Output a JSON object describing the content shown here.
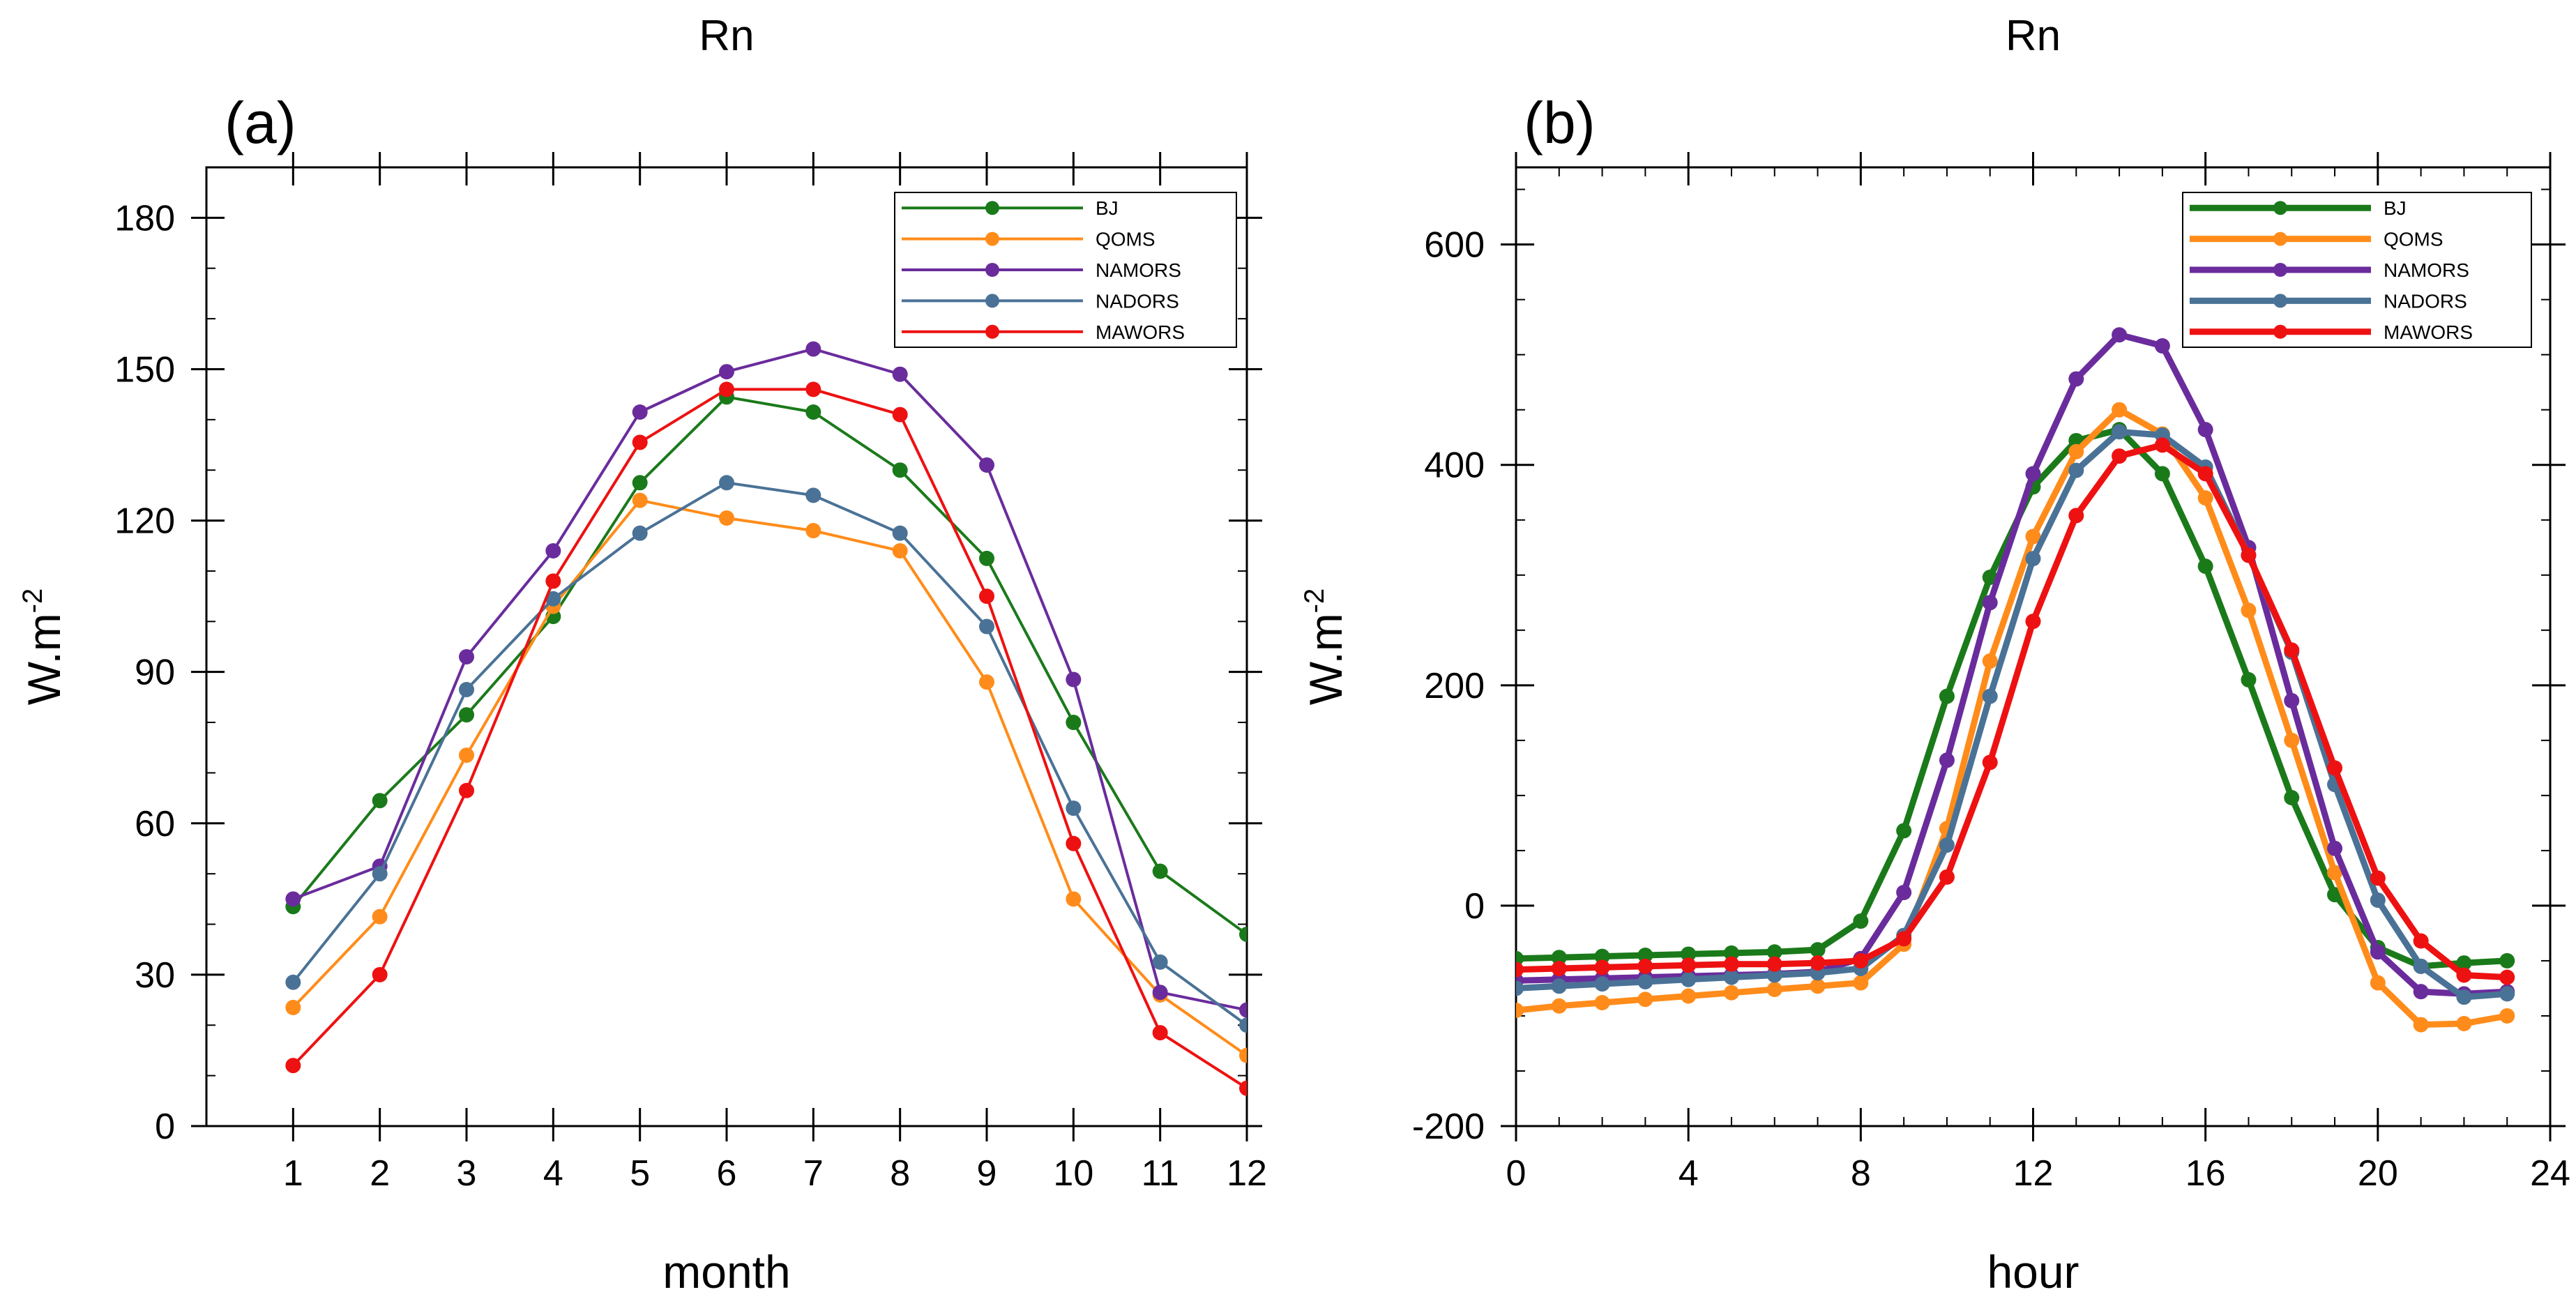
{
  "chart_data": [
    {
      "type": "line",
      "panel_label": "(a)",
      "title": "Rn",
      "xlabel": "month",
      "ylabel": "W.m",
      "ylabel_sup": "-2",
      "xlim": [
        0,
        12
      ],
      "ylim": [
        0,
        190
      ],
      "xticks": [
        1,
        2,
        3,
        4,
        5,
        6,
        7,
        8,
        9,
        10,
        11,
        12
      ],
      "yticks": [
        0,
        30,
        60,
        90,
        120,
        150,
        180
      ],
      "legend_position": "top-right",
      "x": [
        1,
        2,
        3,
        4,
        5,
        6,
        7,
        8,
        9,
        10,
        11,
        12
      ],
      "series": [
        {
          "name": "BJ",
          "color": "#1a7a1a",
          "values": [
            43.5,
            64.5,
            81.5,
            101,
            127.5,
            144.5,
            141.5,
            130,
            112.5,
            80,
            50.5,
            38
          ]
        },
        {
          "name": "QOMS",
          "color": "#ff8c1a",
          "values": [
            23.5,
            41.5,
            73.5,
            103,
            124,
            120.5,
            118,
            114,
            88,
            45,
            26,
            14
          ]
        },
        {
          "name": "NAMORS",
          "color": "#6a2c9c",
          "values": [
            45,
            51.5,
            93,
            114,
            141.5,
            149.5,
            154,
            149,
            131,
            88.5,
            26.5,
            23
          ]
        },
        {
          "name": "NADORS",
          "color": "#4a7296",
          "values": [
            28.5,
            50,
            86.5,
            104.5,
            117.5,
            127.5,
            125,
            117.5,
            99,
            63,
            32.5,
            20
          ]
        },
        {
          "name": "MAWORS",
          "color": "#ee1111",
          "values": [
            12,
            30,
            66.5,
            108,
            135.5,
            146,
            146,
            141,
            105,
            56,
            18.5,
            7.5
          ]
        }
      ]
    },
    {
      "type": "line",
      "panel_label": "(b)",
      "title": "Rn",
      "xlabel": "hour",
      "ylabel": "W.m",
      "ylabel_sup": "-2",
      "xlim": [
        0,
        24
      ],
      "ylim": [
        -200,
        670
      ],
      "xticks": [
        0,
        4,
        8,
        12,
        16,
        20,
        24
      ],
      "yticks": [
        -200,
        0,
        200,
        400,
        600
      ],
      "legend_position": "top-right",
      "x": [
        0,
        1,
        2,
        3,
        4,
        5,
        6,
        7,
        8,
        9,
        10,
        11,
        12,
        13,
        14,
        15,
        16,
        17,
        18,
        19,
        20,
        21,
        22,
        23
      ],
      "series": [
        {
          "name": "BJ",
          "color": "#1a7a1a",
          "values": [
            -48,
            -47,
            -46,
            -45,
            -44,
            -43,
            -42,
            -40,
            -14,
            68,
            190,
            298,
            380,
            422,
            432,
            392,
            308,
            205,
            98,
            10,
            -38,
            -55,
            -52,
            -50
          ]
        },
        {
          "name": "QOMS",
          "color": "#ff8c1a",
          "values": [
            -95,
            -91,
            -88,
            -85,
            -82,
            -79,
            -76,
            -73,
            -70,
            -35,
            70,
            222,
            335,
            412,
            450,
            428,
            370,
            268,
            150,
            30,
            -70,
            -108,
            -107,
            -100
          ]
        },
        {
          "name": "NAMORS",
          "color": "#6a2c9c",
          "values": [
            -68,
            -67,
            -66,
            -65,
            -64,
            -63,
            -62,
            -60,
            -48,
            12,
            132,
            275,
            392,
            478,
            518,
            508,
            432,
            325,
            186,
            52,
            -42,
            -78,
            -80,
            -78
          ]
        },
        {
          "name": "NADORS",
          "color": "#4a7296",
          "values": [
            -75,
            -73,
            -71,
            -69,
            -67,
            -65,
            -63,
            -61,
            -57,
            -27,
            55,
            190,
            315,
            395,
            430,
            427,
            398,
            318,
            230,
            110,
            5,
            -55,
            -83,
            -80
          ]
        },
        {
          "name": "MAWORS",
          "color": "#ee1111",
          "values": [
            -58,
            -57,
            -56,
            -55,
            -54,
            -53,
            -53,
            -52,
            -50,
            -30,
            26,
            130,
            258,
            354,
            408,
            418,
            392,
            318,
            232,
            125,
            25,
            -32,
            -63,
            -65
          ]
        }
      ]
    }
  ]
}
